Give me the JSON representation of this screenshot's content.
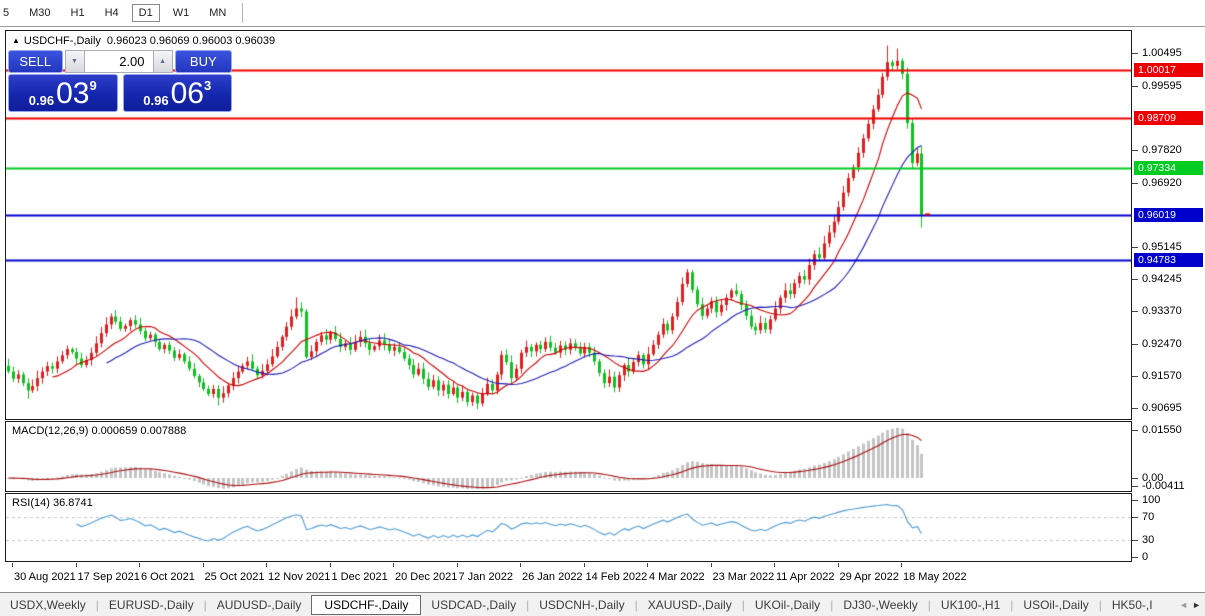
{
  "toolbar": {
    "timeframes": [
      "5",
      "M30",
      "H1",
      "H4",
      "D1",
      "W1",
      "MN"
    ],
    "active_timeframe": "D1"
  },
  "title": {
    "marker": "▲",
    "symbol": "USDCHF-,Daily",
    "ohlc": "0.96023 0.96069 0.96003 0.96039"
  },
  "trade_panel": {
    "sell_label": "SELL",
    "buy_label": "BUY",
    "volume": "2.00",
    "spinner_down": "▼",
    "spinner_up": "▲",
    "sell_price": {
      "prefix": "0.96",
      "big": "03",
      "sup": "9"
    },
    "buy_price": {
      "prefix": "0.96",
      "big": "06",
      "sup": "3"
    }
  },
  "indicator_labels": {
    "macd": "MACD(12,26,9) 0.000659 0.007888",
    "rsi": "RSI(14) 36.8741"
  },
  "axes": {
    "price_ticks": [
      1.00495,
      0.99595,
      0.9782,
      0.9692,
      0.95145,
      0.94245,
      0.9337,
      0.9247,
      0.9157,
      0.90695
    ],
    "macd_ticks": [
      {
        "label": "0.01550",
        "value": 0.0155
      },
      {
        "label": "0.00",
        "value": 0.0
      },
      {
        "label": "-0.00411",
        "value": -0.00411
      }
    ],
    "rsi_ticks": [
      {
        "label": "100",
        "value": 100
      },
      {
        "label": "70",
        "value": 70
      },
      {
        "label": "30",
        "value": 30
      },
      {
        "label": "0",
        "value": 0
      }
    ],
    "date_ticks": [
      "30 Aug 2021",
      "17 Sep 2021",
      "6 Oct 2021",
      "25 Oct 2021",
      "12 Nov 2021",
      "1 Dec 2021",
      "20 Dec 2021",
      "7 Jan 2022",
      "26 Jan 2022",
      "14 Feb 2022",
      "4 Mar 2022",
      "23 Mar 2022",
      "11 Apr 2022",
      "29 Apr 2022",
      "18 May 2022"
    ]
  },
  "hlines": [
    {
      "price": 1.00017,
      "label": "1.00017",
      "color": "#ee0000"
    },
    {
      "price": 0.98709,
      "label": "0.98709",
      "color": "#ee0000"
    },
    {
      "price": 0.97334,
      "label": "0.97334",
      "color": "#00cc22"
    },
    {
      "price": 0.96019,
      "label": "0.96019",
      "color": "#0000cc"
    },
    {
      "price": 0.94783,
      "label": "0.94783",
      "color": "#0000cc"
    }
  ],
  "bottom_tabs": {
    "tabs": [
      {
        "label": "USDX,Weekly",
        "active": false
      },
      {
        "label": "EURUSD-,Daily",
        "active": false
      },
      {
        "label": "AUDUSD-,Daily",
        "active": false
      },
      {
        "label": "USDCHF-,Daily",
        "active": true
      },
      {
        "label": "USDCAD-,Daily",
        "active": false
      },
      {
        "label": "USDCNH-,Daily",
        "active": false
      },
      {
        "label": "XAUUSD-,Daily",
        "active": false
      },
      {
        "label": "UKOil-,Daily",
        "active": false
      },
      {
        "label": "DJ30-,Weekly",
        "active": false
      },
      {
        "label": "UK100-,H1",
        "active": false
      },
      {
        "label": "USOil-,Daily",
        "active": false
      },
      {
        "label": "HK50-,I",
        "active": false
      }
    ],
    "scroll_left": "◄",
    "scroll_right": "►"
  },
  "chart_data": {
    "type": "candlestick",
    "symbol": "USDCHF-,Daily",
    "timeframe": "Daily",
    "note": "red = bullish (close>open), green = bearish",
    "up_color": "#e02020",
    "down_color": "#10c020",
    "ylim_price": [
      0.90695,
      1.00495
    ],
    "ylim_macd": [
      -0.0042,
      0.0184
    ],
    "ylim_rsi": [
      0,
      100
    ],
    "first_open": 0.9186,
    "closes": [
      0.917,
      0.915,
      0.9162,
      0.9138,
      0.9118,
      0.913,
      0.9152,
      0.917,
      0.9185,
      0.9178,
      0.9198,
      0.9215,
      0.9232,
      0.9224,
      0.9206,
      0.9188,
      0.9202,
      0.9222,
      0.9248,
      0.9276,
      0.93,
      0.9322,
      0.9308,
      0.9288,
      0.9296,
      0.9312,
      0.93,
      0.9282,
      0.9262,
      0.9272,
      0.9252,
      0.9232,
      0.9244,
      0.9228,
      0.9208,
      0.9218,
      0.9198,
      0.9178,
      0.9158,
      0.914,
      0.9122,
      0.9108,
      0.9122,
      0.9098,
      0.911,
      0.9132,
      0.9152,
      0.917,
      0.9186,
      0.9198,
      0.9178,
      0.916,
      0.9172,
      0.919,
      0.9212,
      0.9238,
      0.9266,
      0.9294,
      0.9322,
      0.9344,
      0.9336,
      0.921,
      0.9226,
      0.9252,
      0.927,
      0.9258,
      0.9278,
      0.926,
      0.9238,
      0.9248,
      0.923,
      0.9252,
      0.9266,
      0.9248,
      0.923,
      0.924,
      0.9256,
      0.9244,
      0.9228,
      0.9238,
      0.9224,
      0.9206,
      0.9188,
      0.9162,
      0.9178,
      0.915,
      0.9128,
      0.9146,
      0.9118,
      0.9134,
      0.9108,
      0.9126,
      0.9098,
      0.9114,
      0.9086,
      0.9104,
      0.9082,
      0.911,
      0.9136,
      0.9118,
      0.9162,
      0.9216,
      0.9196,
      0.9152,
      0.9178,
      0.9222,
      0.9238,
      0.9226,
      0.9244,
      0.9232,
      0.9252,
      0.9236,
      0.9222,
      0.9242,
      0.923,
      0.9248,
      0.9236,
      0.922,
      0.9238,
      0.9222,
      0.9198,
      0.9166,
      0.9138,
      0.9156,
      0.9126,
      0.916,
      0.9188,
      0.917,
      0.9196,
      0.9216,
      0.919,
      0.9218,
      0.9244,
      0.9272,
      0.9302,
      0.9284,
      0.9322,
      0.9362,
      0.9412,
      0.9444,
      0.9396,
      0.9356,
      0.9324,
      0.9344,
      0.9364,
      0.9334,
      0.9354,
      0.9374,
      0.9394,
      0.9384,
      0.9354,
      0.9324,
      0.9294,
      0.9284,
      0.9304,
      0.9286,
      0.9314,
      0.9344,
      0.9374,
      0.9394,
      0.9384,
      0.9414,
      0.9434,
      0.9424,
      0.9464,
      0.9494,
      0.9484,
      0.9524,
      0.9554,
      0.9584,
      0.9624,
      0.9664,
      0.9704,
      0.9734,
      0.9774,
      0.9814,
      0.9854,
      0.9894,
      0.9934,
      0.9984,
      1.0024,
      1.0014,
      1.0028,
      0.9992,
      0.9856,
      0.9746,
      0.9772,
      0.96039
    ],
    "wick_overrides": {
      "4": {
        "low": 0.9095
      },
      "43": {
        "low": 0.9076
      },
      "59": {
        "high": 0.9375
      },
      "96": {
        "low": 0.9066
      },
      "180": {
        "high": 1.007
      },
      "182": {
        "high": 1.0062
      },
      "187": {
        "low": 0.9568
      }
    },
    "ma_fast": {
      "period": 10,
      "color": "#cc0000"
    },
    "ma_slow": {
      "period": 21,
      "color": "#2020b0"
    },
    "macd": {
      "fast": 12,
      "slow": 26,
      "signal": 9,
      "histogram_color": "#c4c4c4",
      "signal_color": "#aa1111",
      "current_main": 0.000659,
      "current_signal": 0.007888
    },
    "rsi": {
      "period": 14,
      "current": 36.8741,
      "levels": [
        70,
        30
      ],
      "level_color": "#c8c8c8",
      "color": "#4e9bd4"
    }
  }
}
